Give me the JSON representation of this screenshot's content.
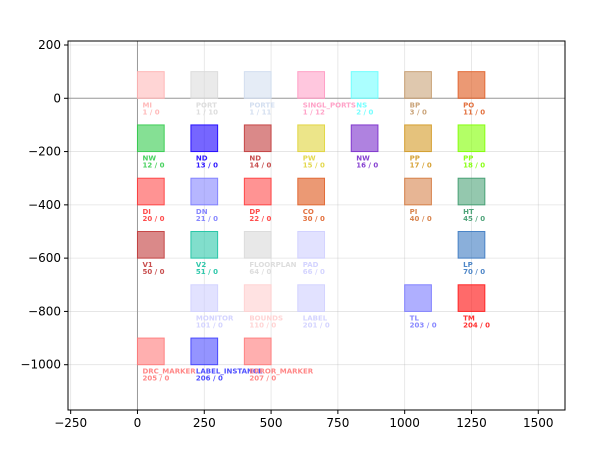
{
  "chart_data": {
    "type": "scatter",
    "title": "",
    "xlabel": "",
    "ylabel": "",
    "xlim": [
      -260,
      1600
    ],
    "ylim": [
      -1170,
      215
    ],
    "xticks": [
      -250,
      0,
      250,
      500,
      750,
      1000,
      1250,
      1500
    ],
    "yticks": [
      200,
      0,
      -200,
      -400,
      -600,
      -800,
      -1000
    ],
    "xtick_labels": [
      "−250",
      "0",
      "250",
      "500",
      "750",
      "1000",
      "1250",
      "1500"
    ],
    "ytick_labels": [
      "200",
      "0",
      "−200",
      "−400",
      "−600",
      "−800",
      "−1000"
    ],
    "grid": true,
    "box_size": 100,
    "boxes": [
      {
        "x": 0,
        "y": 100,
        "name": "MI",
        "count": "1 / 0",
        "color": "#ffb3b3",
        "alpha": 0.55
      },
      {
        "x": 200,
        "y": 100,
        "name": "PORT",
        "count": "1 / 10",
        "color": "#d9d9d9",
        "alpha": 0.55
      },
      {
        "x": 400,
        "y": 100,
        "name": "PORTE",
        "count": "1 / 11",
        "color": "#cfdcee",
        "alpha": 0.55
      },
      {
        "x": 600,
        "y": 100,
        "name": "SINGL_PORTS",
        "count": "1 / 12",
        "color": "#ff99c2",
        "alpha": 0.55
      },
      {
        "x": 800,
        "y": 100,
        "name": "NS",
        "count": "2 / 0",
        "color": "#66ffff",
        "alpha": 0.55
      },
      {
        "x": 1000,
        "y": 100,
        "name": "BP",
        "count": "3 / 0",
        "color": "#c49a6c",
        "alpha": 0.55
      },
      {
        "x": 1200,
        "y": 100,
        "name": "PO",
        "count": "11 / 0",
        "color": "#e0622a",
        "alpha": 0.65
      },
      {
        "x": 0,
        "y": -100,
        "name": "NW",
        "count": "12 / 0",
        "color": "#33cc4d",
        "alpha": 0.6
      },
      {
        "x": 200,
        "y": -100,
        "name": "ND",
        "count": "13 / 0",
        "color": "#1a00ff",
        "alpha": 0.6
      },
      {
        "x": 400,
        "y": -100,
        "name": "ND",
        "count": "14 / 0",
        "color": "#c23b3b",
        "alpha": 0.6
      },
      {
        "x": 600,
        "y": -100,
        "name": "PW",
        "count": "15 / 0",
        "color": "#e0d43a",
        "alpha": 0.6
      },
      {
        "x": 800,
        "y": -100,
        "name": "NW",
        "count": "16 / 0",
        "color": "#7a2ecc",
        "alpha": 0.6
      },
      {
        "x": 1000,
        "y": -100,
        "name": "PP",
        "count": "17 / 0",
        "color": "#d39a24",
        "alpha": 0.6
      },
      {
        "x": 1200,
        "y": -100,
        "name": "PP",
        "count": "18 / 0",
        "color": "#80ff00",
        "alpha": 0.6
      },
      {
        "x": 0,
        "y": -300,
        "name": "DI",
        "count": "20 / 0",
        "color": "#ff3a3a",
        "alpha": 0.55
      },
      {
        "x": 200,
        "y": -300,
        "name": "DN",
        "count": "21 / 0",
        "color": "#7a7aff",
        "alpha": 0.55
      },
      {
        "x": 400,
        "y": -300,
        "name": "DP",
        "count": "22 / 0",
        "color": "#ff3a3a",
        "alpha": 0.55
      },
      {
        "x": 600,
        "y": -300,
        "name": "CO",
        "count": "30 / 0",
        "color": "#e0622a",
        "alpha": 0.65
      },
      {
        "x": 1000,
        "y": -300,
        "name": "PI",
        "count": "40 / 0",
        "color": "#d4783c",
        "alpha": 0.55
      },
      {
        "x": 1200,
        "y": -300,
        "name": "HT",
        "count": "45 / 0",
        "color": "#3c9a6c",
        "alpha": 0.55
      },
      {
        "x": 0,
        "y": -500,
        "name": "V1",
        "count": "50 / 0",
        "color": "#c23b3b",
        "alpha": 0.6
      },
      {
        "x": 200,
        "y": -500,
        "name": "V2",
        "count": "51 / 0",
        "color": "#1ac2a2",
        "alpha": 0.55
      },
      {
        "x": 400,
        "y": -500,
        "name": "FLOORPLAN",
        "count": "64 / 0",
        "color": "#d9d9d9",
        "alpha": 0.6
      },
      {
        "x": 600,
        "y": -500,
        "name": "PAD",
        "count": "66 / 0",
        "color": "#cfcfff",
        "alpha": 0.6
      },
      {
        "x": 1200,
        "y": -500,
        "name": "LP",
        "count": "70 / 0",
        "color": "#3c7ac2",
        "alpha": 0.6
      },
      {
        "x": 200,
        "y": -700,
        "name": "MONITOR",
        "count": "101 / 0",
        "color": "#cfcfff",
        "alpha": 0.6
      },
      {
        "x": 400,
        "y": -700,
        "name": "BOUNDS",
        "count": "110 / 0",
        "color": "#ffcfcf",
        "alpha": 0.6
      },
      {
        "x": 600,
        "y": -700,
        "name": "LABEL",
        "count": "201 / 0",
        "color": "#cfcfff",
        "alpha": 0.6
      },
      {
        "x": 1000,
        "y": -700,
        "name": "TL",
        "count": "203 / 0",
        "color": "#7a7aff",
        "alpha": 0.6
      },
      {
        "x": 1200,
        "y": -700,
        "name": "TM",
        "count": "204 / 0",
        "color": "#ff1a1a",
        "alpha": 0.65
      },
      {
        "x": 0,
        "y": -900,
        "name": "DRC_MARKER",
        "count": "205 / 0",
        "color": "#ff7a7a",
        "alpha": 0.6
      },
      {
        "x": 200,
        "y": -900,
        "name": "LABEL_INSTANCE",
        "count": "206 / 0",
        "color": "#3c3cff",
        "alpha": 0.55
      },
      {
        "x": 400,
        "y": -900,
        "name": "ERROR_MARKER",
        "count": "207 / 0",
        "color": "#ff7a7a",
        "alpha": 0.6
      }
    ]
  }
}
